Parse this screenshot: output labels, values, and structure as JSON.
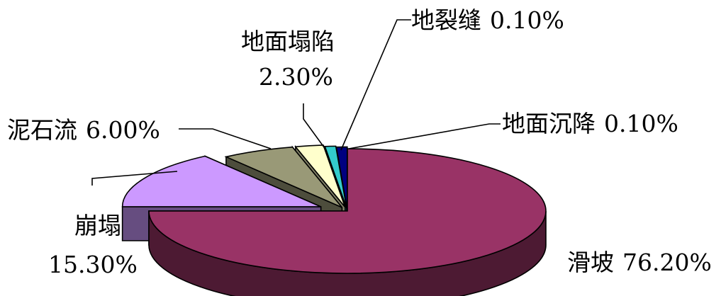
{
  "chart_data": {
    "type": "pie",
    "style": "3d-exploded",
    "title": "",
    "legend": "none",
    "slices": [
      {
        "name": "滑坡",
        "value": 76.2,
        "label": "76.20%",
        "color": "#993366",
        "side": "#4d1a33"
      },
      {
        "name": "崩塌",
        "value": 15.3,
        "label": "15.30%",
        "color": "#cc99ff",
        "side": "#664d80"
      },
      {
        "name": "泥石流",
        "value": 6.0,
        "label": "6.00%",
        "color": "#999977",
        "side": "#4d4d3c"
      },
      {
        "name": "地面塌陷",
        "value": 2.3,
        "label": "2.30%",
        "color": "#ffffcc",
        "side": "#808066"
      },
      {
        "name": "地裂缝",
        "value": 0.1,
        "label": "0.10%",
        "color": "#33cccc",
        "side": "#1a6666"
      },
      {
        "name": "地面沉降",
        "value": 0.1,
        "label": "0.10%",
        "color": "#000080",
        "side": "#000040"
      }
    ]
  }
}
